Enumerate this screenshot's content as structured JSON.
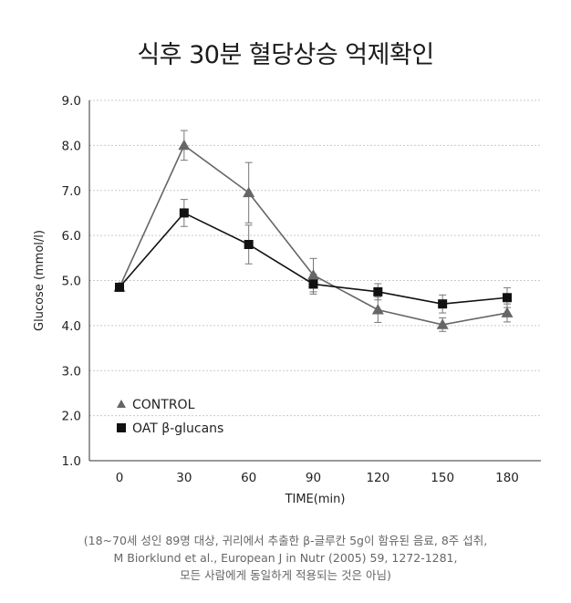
{
  "title": "식후 30분 혈당상승 억제확인",
  "chart_data": {
    "type": "line",
    "title": "식후 30분 혈당상승 억제확인",
    "xlabel": "TIME(min)",
    "ylabel": "Glucose (mmol/l)",
    "x": [
      0,
      30,
      60,
      90,
      120,
      150,
      180
    ],
    "x_tick_labels": [
      "0",
      "30",
      "60",
      "90",
      "120",
      "150",
      "180"
    ],
    "y_tick_labels": [
      "1.0",
      "2.0",
      "3.0",
      "4.0",
      "5.0",
      "6.0",
      "7.0",
      "8.0",
      "9.0"
    ],
    "ylim": [
      1.0,
      9.0
    ],
    "grid": "horizontal dashed",
    "legend_position": "bottom-left",
    "series": [
      {
        "name": "CONTROL",
        "marker": "triangle",
        "color": "#666666",
        "values": [
          4.85,
          8.0,
          6.95,
          5.12,
          4.35,
          4.02,
          4.28
        ],
        "error": [
          0,
          0.33,
          0.67,
          0.37,
          0.28,
          0.15,
          0.2
        ]
      },
      {
        "name": "OAT β-glucans",
        "marker": "square",
        "color": "#111111",
        "values": [
          4.85,
          6.5,
          5.8,
          4.92,
          4.75,
          4.48,
          4.62
        ],
        "error": [
          0,
          0.3,
          0.43,
          0.22,
          0.18,
          0.2,
          0.22
        ]
      }
    ]
  },
  "footnote": {
    "line1": "(18~70세 성인 89명 대상, 귀리에서 추출한 β-글루칸 5g이 함유된 음료, 8주 섭취,",
    "line2": "M Biorklund et al., European J in Nutr (2005) 59, 1272-1281,",
    "line3": "모든 사람에게 동일하게 적용되는 것은 아님)"
  }
}
